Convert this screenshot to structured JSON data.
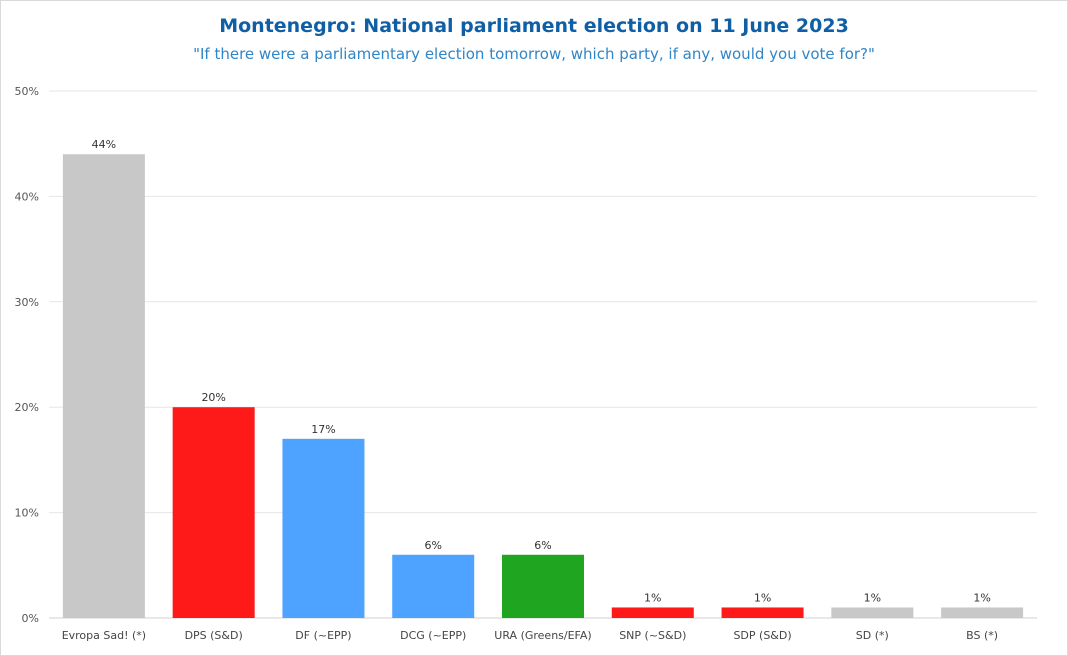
{
  "chart_data": {
    "type": "bar",
    "title": "Montenegro: National parliament election on 11 June 2023",
    "subtitle": "\"If there were a parliamentary election tomorrow, which party, if any, would you vote for?\"",
    "xlabel": "",
    "ylabel": "",
    "ylim": [
      0,
      50
    ],
    "yticks": [
      "0%",
      "10%",
      "20%",
      "30%",
      "40%",
      "50%"
    ],
    "ytick_values": [
      0,
      10,
      20,
      30,
      40,
      50
    ],
    "grid": true,
    "legend": "none",
    "categories": [
      "Evropa Sad! (*)",
      "DPS (S&D)",
      "DF (~EPP)",
      "DCG (~EPP)",
      "URA (Greens/EFA)",
      "SNP (~S&D)",
      "SDP (S&D)",
      "SD (*)",
      "BS (*)"
    ],
    "values": [
      44,
      20,
      17,
      6,
      6,
      1,
      1,
      1,
      1
    ],
    "data_labels": [
      "44%",
      "20%",
      "17%",
      "6%",
      "6%",
      "1%",
      "1%",
      "1%",
      "1%"
    ],
    "colors": [
      "#c8c8c8",
      "#ff1a1a",
      "#4da3ff",
      "#4da3ff",
      "#1fa51f",
      "#ff1a1a",
      "#ff1a1a",
      "#c8c8c8",
      "#c8c8c8"
    ]
  }
}
